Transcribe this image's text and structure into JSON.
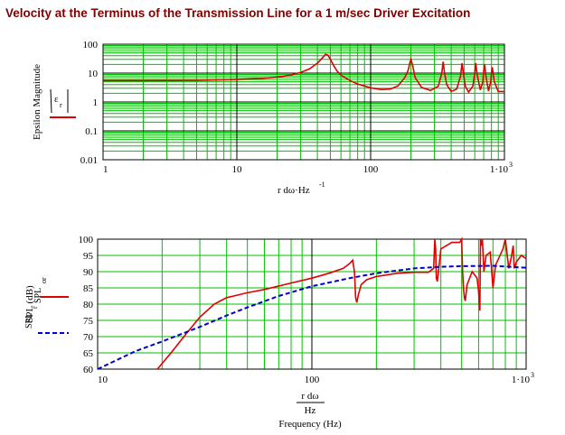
{
  "title": "Velocity at the Terminus of the Transmission Line for a 1 m/sec Driver Excitation",
  "colors": {
    "title": "#800000",
    "grid": "#00c000",
    "major_grid": "#000000",
    "red_trace": "#e00000",
    "blue_trace": "#0000cc"
  },
  "chart_data": [
    {
      "type": "line",
      "xscale": "log",
      "yscale": "log",
      "xlim": [
        1,
        1000
      ],
      "ylim": [
        0.01,
        100
      ],
      "ylabel": "Epsilon Magnitude",
      "xlabel": "r dω·Hz",
      "xlabel_sup": "-1",
      "x_ticks": [
        "1",
        "10",
        "100",
        "1·10"
      ],
      "x_tick_last_sup": "3",
      "y_ticks": [
        "100",
        "10",
        "1",
        "0.1",
        "0.01"
      ],
      "legend": {
        "symbol": "ε",
        "subscript": "r"
      },
      "grid": true,
      "series": [
        {
          "x": [
            1,
            2,
            5,
            10,
            15,
            20,
            25,
            30,
            35,
            40,
            44,
            46,
            48,
            50,
            53,
            56,
            60,
            70,
            80,
            100,
            120,
            140,
            160,
            180,
            190,
            196,
            200,
            206,
            215,
            240,
            280,
            320,
            340,
            348,
            355,
            370,
            400,
            440,
            470,
            482,
            490,
            510,
            540,
            580,
            600,
            610,
            625,
            660,
            690,
            700,
            710,
            730,
            760,
            790,
            800,
            812,
            840,
            900,
            1000
          ],
          "y": [
            5.5,
            5.5,
            5.6,
            6.0,
            6.5,
            7.3,
            8.5,
            10.5,
            14,
            22,
            35,
            45,
            42,
            30,
            18,
            12,
            8.5,
            5.5,
            4.2,
            3.1,
            2.7,
            2.8,
            3.6,
            7,
            12,
            22,
            30,
            18,
            7,
            3.2,
            2.5,
            3.5,
            10,
            25,
            12,
            4,
            2.3,
            2.8,
            8,
            22,
            13,
            3.5,
            2.2,
            3.5,
            10,
            22,
            9,
            2.6,
            5,
            12,
            20,
            7,
            2.4,
            5,
            10,
            16,
            5,
            2.3,
            2.3
          ],
          "color": "#e00000"
        }
      ]
    },
    {
      "type": "line",
      "xscale": "log",
      "yscale": "linear",
      "xlim": [
        10,
        1000
      ],
      "ylim": [
        60,
        100
      ],
      "ylabel": "SPL (dB)",
      "xlabel_top": "r dω",
      "xlabel_mid": "Hz",
      "xlabel": "Frequency (Hz)",
      "x_ticks": [
        "10",
        "100",
        "1·10"
      ],
      "x_tick_last_sup": "3",
      "y_ticks": [
        "100",
        "95",
        "90",
        "85",
        "80",
        "75",
        "70",
        "65",
        "60"
      ],
      "legend": [
        {
          "name": "SPL",
          "subscript": "or",
          "color": "#e00000",
          "style": "solid"
        },
        {
          "name": "SPL",
          "subscript": "r",
          "color": "#0000cc",
          "style": "dashed"
        }
      ],
      "grid": true,
      "series": [
        {
          "name": "SPL",
          "x": [
            19,
            22,
            26,
            30,
            35,
            40,
            50,
            60,
            80,
            100,
            120,
            140,
            150,
            155,
            158,
            160,
            162,
            165,
            170,
            180,
            200,
            250,
            300,
            350,
            370,
            375,
            378,
            381,
            385,
            400,
            450,
            490,
            500,
            505,
            510,
            515,
            520,
            530,
            560,
            590,
            600,
            608,
            612,
            616,
            620,
            625,
            635,
            650,
            680,
            700,
            720,
            780,
            800,
            830,
            850,
            870,
            880,
            900,
            950,
            1000
          ],
          "y": [
            60,
            65,
            71,
            76,
            80,
            82,
            83.5,
            84.5,
            86.5,
            88,
            89.5,
            91,
            92.5,
            93.5,
            90,
            82,
            80.5,
            83,
            86,
            87.5,
            88.5,
            89.5,
            89.8,
            89.8,
            91,
            100,
            97,
            88,
            87,
            97,
            99,
            99,
            100,
            90,
            85,
            82,
            81,
            86,
            90,
            88,
            84,
            78,
            100,
            99,
            98,
            100,
            90,
            95,
            96,
            85,
            92,
            97,
            100,
            91,
            94,
            98,
            91,
            93,
            95,
            94
          ],
          "color": "#e00000"
        },
        {
          "name": "SPL",
          "x": [
            10,
            15,
            20,
            30,
            40,
            50,
            70,
            100,
            150,
            200,
            300,
            400,
            500,
            700,
            1000
          ],
          "y": [
            60,
            65.5,
            68.5,
            73,
            76.5,
            79,
            82.5,
            85.5,
            88,
            89.5,
            91,
            91.5,
            91.7,
            91.8,
            91.2
          ],
          "color": "#0000cc",
          "dashed": true
        }
      ]
    }
  ]
}
